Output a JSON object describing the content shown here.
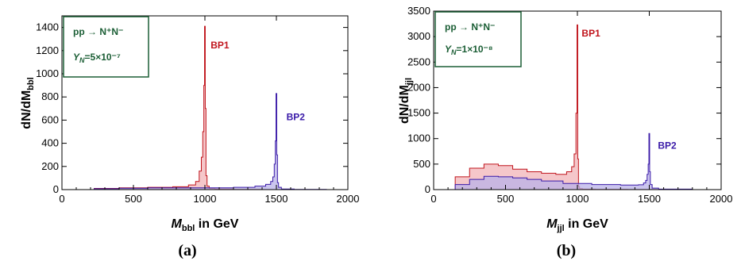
{
  "colors": {
    "bp1_line": "#c0141c",
    "bp1_fill": "#f2b4b8",
    "bp2_line": "#3a1aa8",
    "bp2_fill": "#b9b2e8",
    "legend": "#1b5e35"
  },
  "chart_data": [
    {
      "type": "area",
      "panel_label": "(a)",
      "ylabel": "dN/dM",
      "ylabel_sub": "bbl",
      "xlabel_main": "M",
      "xlabel_sub": "bbl",
      "xlabel_tail": " in GeV",
      "xlim": [
        0,
        2000
      ],
      "ylim": [
        0,
        1500
      ],
      "xticks": [
        "0",
        "500",
        "1000",
        "1500",
        "2000"
      ],
      "yticks": [
        "0",
        "200",
        "400",
        "600",
        "800",
        "1000",
        "1200",
        "1400"
      ],
      "legend": {
        "process": "pp → N⁺N⁻",
        "coupling_sym": "Y",
        "coupling_sub": "N",
        "coupling_val": "=5×10⁻⁷"
      },
      "series": [
        {
          "name": "BP1",
          "x": [
            150,
            300,
            500,
            700,
            850,
            920,
            950,
            970,
            980,
            990,
            995,
            1000,
            1005,
            1010,
            1020,
            1040,
            1100,
            1300,
            1500,
            1700,
            2000
          ],
          "values": [
            0,
            10,
            15,
            20,
            25,
            40,
            70,
            160,
            280,
            500,
            900,
            1410,
            700,
            120,
            30,
            10,
            5,
            2,
            0,
            0,
            0
          ]
        },
        {
          "name": "BP2",
          "x": [
            150,
            300,
            500,
            700,
            900,
            1100,
            1300,
            1400,
            1450,
            1470,
            1480,
            1490,
            1495,
            1500,
            1505,
            1510,
            1520,
            1550,
            1700,
            2000
          ],
          "values": [
            0,
            8,
            12,
            15,
            15,
            15,
            20,
            30,
            45,
            70,
            110,
            220,
            420,
            830,
            300,
            60,
            20,
            5,
            2,
            0
          ]
        }
      ]
    },
    {
      "type": "area",
      "panel_label": "(b)",
      "ylabel": "dN/dM",
      "ylabel_sub": "jjl",
      "xlabel_main": "M",
      "xlabel_sub": "jjl",
      "xlabel_tail": " in GeV",
      "xlim": [
        0,
        2000
      ],
      "ylim": [
        0,
        3500
      ],
      "xticks": [
        "0",
        "500",
        "1000",
        "1500",
        "2000"
      ],
      "yticks": [
        "0",
        "500",
        "1000",
        "1500",
        "2000",
        "2500",
        "3000",
        "3500"
      ],
      "legend": {
        "process": "pp → N⁺N⁻",
        "coupling_sym": "Y",
        "coupling_sub": "N",
        "coupling_val": "=1×10⁻⁸"
      },
      "series": [
        {
          "name": "BP1",
          "x": [
            100,
            200,
            300,
            400,
            500,
            600,
            700,
            800,
            900,
            950,
            970,
            985,
            995,
            1000,
            1005,
            1010,
            1020,
            1050,
            1200,
            1500,
            2000
          ],
          "values": [
            0,
            250,
            420,
            500,
            470,
            400,
            350,
            320,
            300,
            350,
            450,
            700,
            1500,
            3230,
            600,
            60,
            20,
            10,
            5,
            2,
            0
          ]
        },
        {
          "name": "BP2",
          "x": [
            100,
            200,
            300,
            400,
            500,
            600,
            700,
            800,
            1000,
            1200,
            1400,
            1450,
            1470,
            1480,
            1490,
            1495,
            1500,
            1505,
            1510,
            1530,
            1600,
            2000
          ],
          "values": [
            0,
            100,
            200,
            260,
            250,
            230,
            200,
            170,
            120,
            100,
            90,
            95,
            130,
            180,
            300,
            500,
            1100,
            350,
            100,
            30,
            10,
            0
          ]
        }
      ]
    }
  ]
}
